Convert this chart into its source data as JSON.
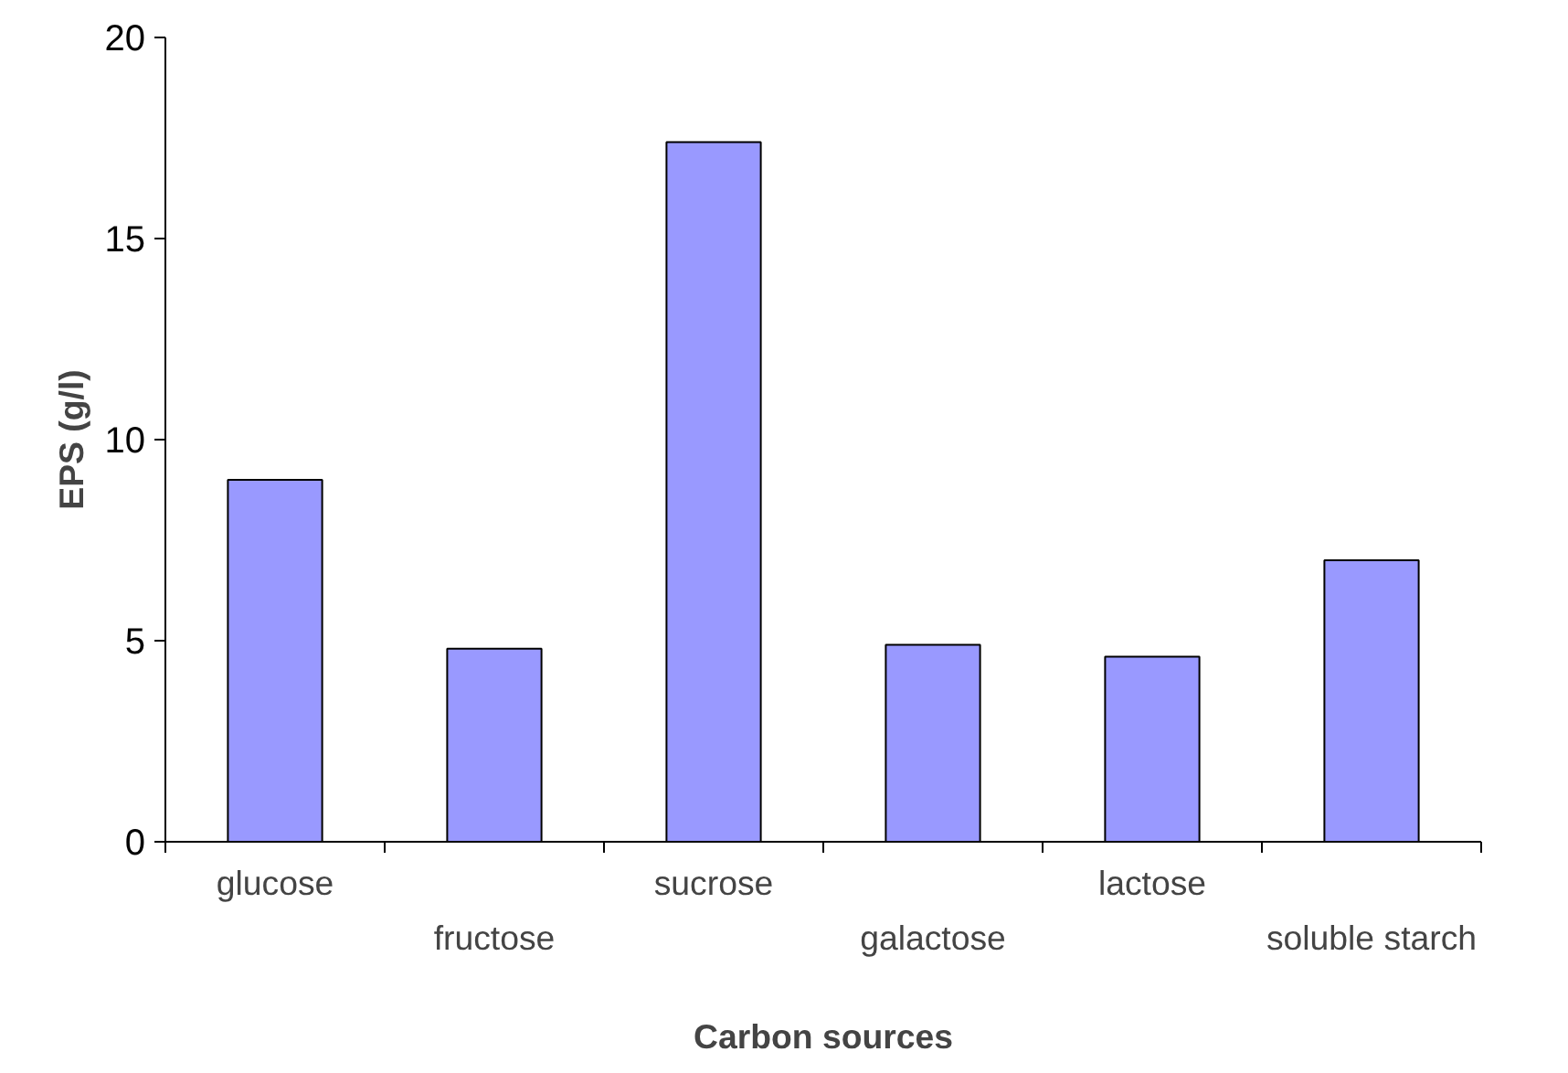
{
  "chart_data": {
    "type": "bar",
    "xlabel": "Carbon sources",
    "ylabel": "EPS (g/l)",
    "categories": [
      "glucose",
      "fructose",
      "sucrose",
      "galactose",
      "lactose",
      "soluble starch"
    ],
    "values": [
      9.0,
      4.8,
      17.4,
      4.9,
      4.6,
      7.0
    ],
    "color": "#9999ff",
    "ylim": [
      0,
      20
    ],
    "yticks": [
      0,
      5,
      10,
      15,
      20
    ]
  }
}
